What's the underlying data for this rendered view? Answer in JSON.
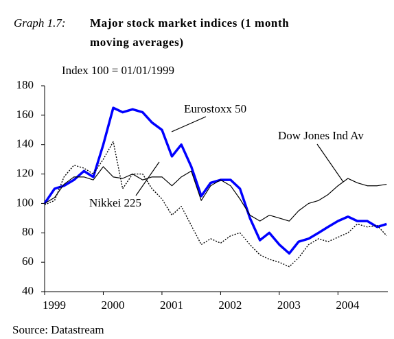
{
  "chart_data": {
    "type": "line",
    "title_label": "Graph 1.7:",
    "title": [
      "Major stock market indices (1 month",
      "moving averages)"
    ],
    "subtitle": "Index 100 = 01/01/1999",
    "source": "Source: Datastream",
    "x": [
      1999.0,
      1999.17,
      1999.33,
      1999.5,
      1999.67,
      1999.83,
      2000.0,
      2000.17,
      2000.33,
      2000.5,
      2000.67,
      2000.83,
      2001.0,
      2001.17,
      2001.33,
      2001.5,
      2001.67,
      2001.83,
      2002.0,
      2002.17,
      2002.33,
      2002.5,
      2002.67,
      2002.83,
      2003.0,
      2003.17,
      2003.33,
      2003.5,
      2003.67,
      2003.83,
      2004.0,
      2004.17,
      2004.33,
      2004.5,
      2004.67,
      2004.83
    ],
    "xlim": [
      1999,
      2004.85
    ],
    "xticks": [
      1999,
      2000,
      2001,
      2002,
      2003,
      2004
    ],
    "ylim": [
      40,
      180
    ],
    "yticks": [
      40,
      60,
      80,
      100,
      120,
      140,
      160,
      180
    ],
    "series": [
      {
        "name": "Eurostoxx 50",
        "color": "#0000ff",
        "width": 3.5,
        "dashed": false,
        "values": [
          100,
          110,
          112,
          116,
          122,
          118,
          140,
          165,
          162,
          164,
          162,
          155,
          150,
          132,
          140,
          125,
          105,
          114,
          116,
          116,
          110,
          90,
          75,
          80,
          72,
          66,
          74,
          76,
          80,
          84,
          88,
          91,
          88,
          88,
          84,
          86
        ]
      },
      {
        "name": "Dow Jones Ind Av",
        "color": "#000000",
        "width": 1.2,
        "dashed": false,
        "values": [
          100,
          104,
          113,
          118,
          118,
          116,
          125,
          118,
          117,
          120,
          116,
          118,
          118,
          112,
          118,
          122,
          102,
          112,
          116,
          112,
          103,
          92,
          88,
          92,
          90,
          88,
          95,
          100,
          102,
          106,
          112,
          117,
          114,
          112,
          112,
          113
        ]
      },
      {
        "name": "Nikkei 225",
        "color": "#000000",
        "width": 1.4,
        "dashed": true,
        "values": [
          99,
          102,
          118,
          126,
          124,
          120,
          130,
          142,
          110,
          120,
          120,
          110,
          103,
          92,
          98,
          85,
          72,
          76,
          73,
          78,
          80,
          72,
          65,
          62,
          60,
          57,
          63,
          72,
          76,
          74,
          77,
          80,
          86,
          84,
          85,
          78
        ]
      }
    ]
  }
}
